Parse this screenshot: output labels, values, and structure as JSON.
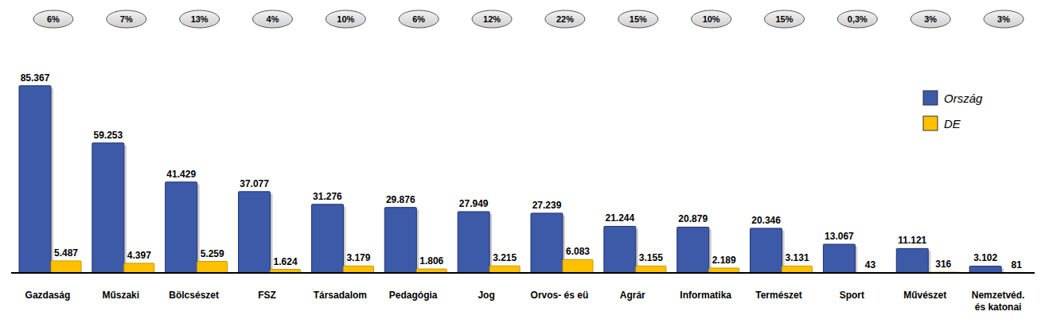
{
  "chart_data": {
    "type": "bar",
    "categories": [
      "Gazdaság",
      "Műszaki",
      "Bölcsészet",
      "FSZ",
      "Társadalom",
      "Pedagógia",
      "Jog",
      "Orvos- és eü",
      "Agrár",
      "Informatika",
      "Természet",
      "Sport",
      "Művészet",
      "Nemzetvéd. és katonai"
    ],
    "series": [
      {
        "name": "Ország",
        "color": "#3c5aa8",
        "values": [
          85367,
          59253,
          41429,
          37077,
          31276,
          29876,
          27949,
          27239,
          21244,
          20879,
          20346,
          13067,
          11121,
          3102
        ],
        "value_labels": [
          "85.367",
          "59.253",
          "41.429",
          "37.077",
          "31.276",
          "29.876",
          "27.949",
          "27.239",
          "21.244",
          "20.879",
          "20.346",
          "13.067",
          "11.121",
          "3.102"
        ]
      },
      {
        "name": "DE",
        "color": "#ffc000",
        "values": [
          5487,
          4397,
          5259,
          1624,
          3179,
          1806,
          3215,
          6083,
          3155,
          2189,
          3131,
          43,
          316,
          81
        ],
        "value_labels": [
          "5.487",
          "4.397",
          "5.259",
          "1.624",
          "3.179",
          "1.806",
          "3.215",
          "6.083",
          "3.155",
          "2.189",
          "3.131",
          "43",
          "316",
          "81"
        ]
      }
    ],
    "shares": [
      6,
      7,
      13,
      4,
      10,
      6,
      12,
      22,
      15,
      10,
      15,
      0.3,
      3,
      3
    ],
    "share_labels": [
      "6%",
      "7%",
      "13%",
      "4%",
      "10%",
      "6%",
      "12%",
      "22%",
      "15%",
      "10%",
      "15%",
      "0,3%",
      "3%",
      "3%"
    ],
    "ylim": [
      0,
      90000
    ],
    "data_labels": true,
    "tick_labels": "x",
    "legend": "top-right"
  }
}
